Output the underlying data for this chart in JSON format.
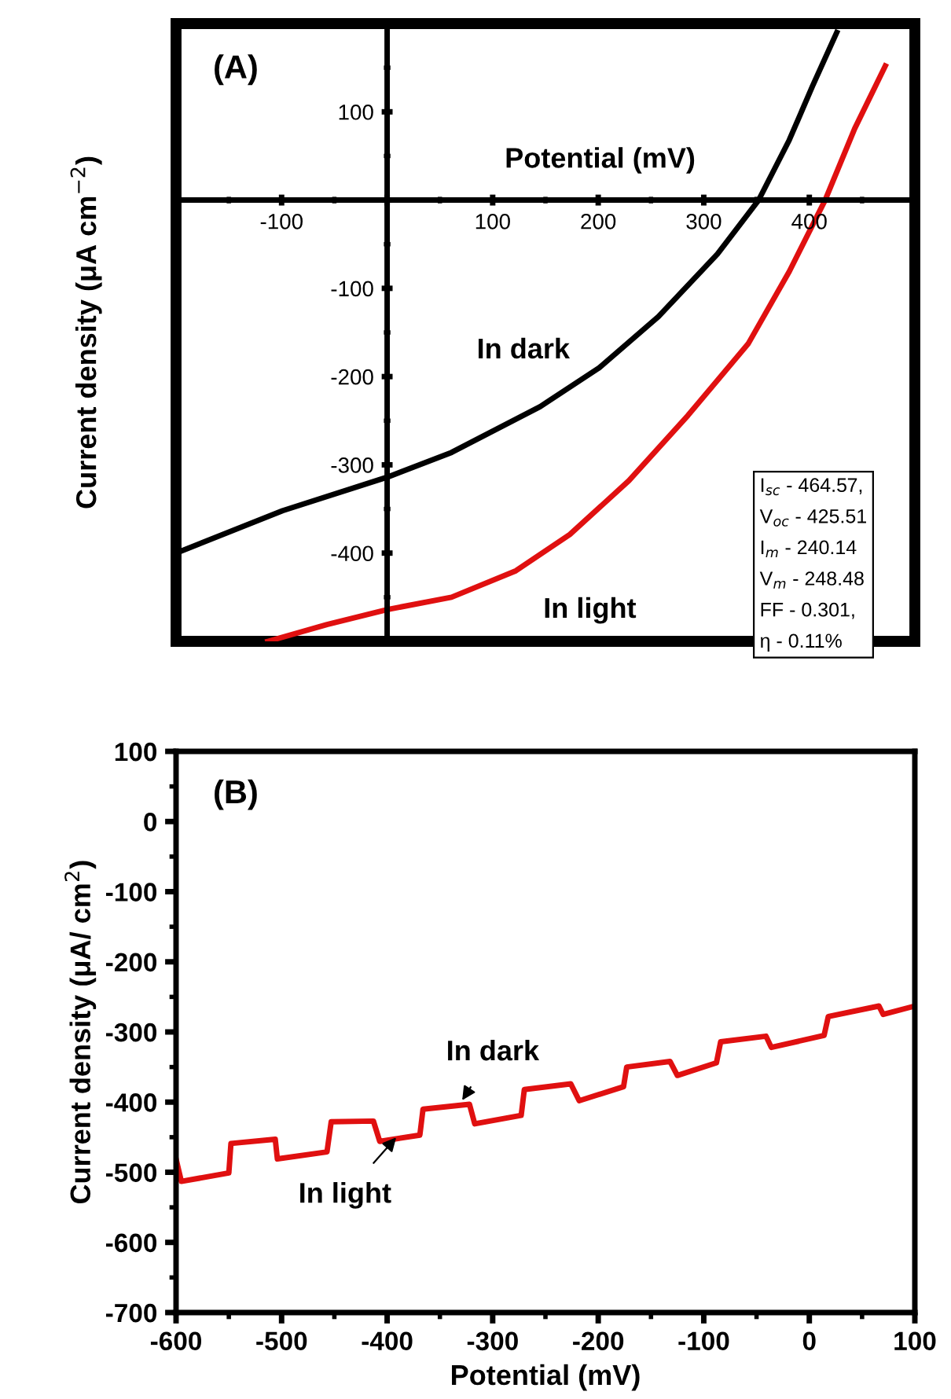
{
  "chart_data": [
    {
      "type": "line",
      "title": "(A)",
      "xlabel": "Potential (mV)",
      "ylabel": "Current density (μA cm$^{−2}$)",
      "xlim": [
        -200,
        500
      ],
      "xticks": [
        {
          "value": -200,
          "label": null
        },
        -100,
        {
          "value": 0,
          "label": null
        },
        100,
        200,
        300,
        400,
        {
          "value": 500,
          "label": null
        }
      ],
      "ylim": [
        -500,
        200
      ],
      "yticks": [
        {
          "value": -500,
          "label": null
        },
        -400,
        -300,
        -200,
        -100,
        {
          "value": 0,
          "label": null
        },
        100,
        {
          "value": 200,
          "label": null
        }
      ],
      "series": [
        {
          "color": "#000000",
          "x": [
            -200,
            -99,
            0,
            61,
            145,
            201,
            257,
            313,
            352,
            381,
            403,
            426
          ],
          "values": [
            -400,
            -352,
            -314,
            -286,
            -234,
            -190,
            -132,
            -61,
            0,
            68,
            129,
            190
          ]
        },
        {
          "color": "#e01010",
          "x": [
            -113,
            -57,
            0,
            61,
            122,
            173,
            229,
            285,
            342,
            381,
            415,
            443,
            472
          ],
          "values": [
            -500,
            -481,
            -464,
            -450,
            -420,
            -379,
            -318,
            -244,
            -163,
            -81,
            0,
            81,
            152
          ]
        }
      ],
      "annotations": [
        "In dark",
        "In light",
        "I$_{sc}$ - 464.57,",
        "V$_{oc}$ - 425.51",
        "I$_{m}$ - 240.14",
        "V$_{m}$ - 248.48",
        "FF - 0.301,",
        "η - 0.11%"
      ]
    },
    {
      "type": "line",
      "title": "(B)",
      "xlabel": "Potential (mV)",
      "ylabel": "Current density (μA/ cm$^{2}$)",
      "xlim": [
        -600,
        100
      ],
      "xticks": [
        -600,
        -500,
        -400,
        -300,
        -200,
        -100,
        0,
        100
      ],
      "ylim": [
        -700,
        100
      ],
      "yticks": [
        -700,
        -600,
        -500,
        -400,
        -300,
        -200,
        -100,
        0,
        100
      ],
      "series": [
        {
          "color": "#e01010",
          "x": [
            -600,
            -595,
            -550,
            -548,
            -506,
            -504,
            -457,
            -453,
            -413,
            -407,
            -369,
            -366,
            -322,
            -317,
            -273,
            -270,
            -226,
            -218,
            -176,
            -173,
            -132,
            -125,
            -88,
            -84,
            -41,
            -36,
            14,
            18,
            66,
            70,
            100
          ],
          "values": [
            -481,
            -513,
            -501,
            -459,
            -453,
            -481,
            -471,
            -428,
            -427,
            -456,
            -447,
            -410,
            -403,
            -431,
            -419,
            -382,
            -374,
            -398,
            -378,
            -350,
            -342,
            -362,
            -344,
            -314,
            -306,
            -322,
            -305,
            -278,
            -263,
            -275,
            -263
          ]
        }
      ],
      "annotations": [
        {
          "text": "In dark",
          "x": -330,
          "y": -400
        },
        {
          "text": "In light",
          "x": -390,
          "y": -448
        }
      ]
    }
  ]
}
